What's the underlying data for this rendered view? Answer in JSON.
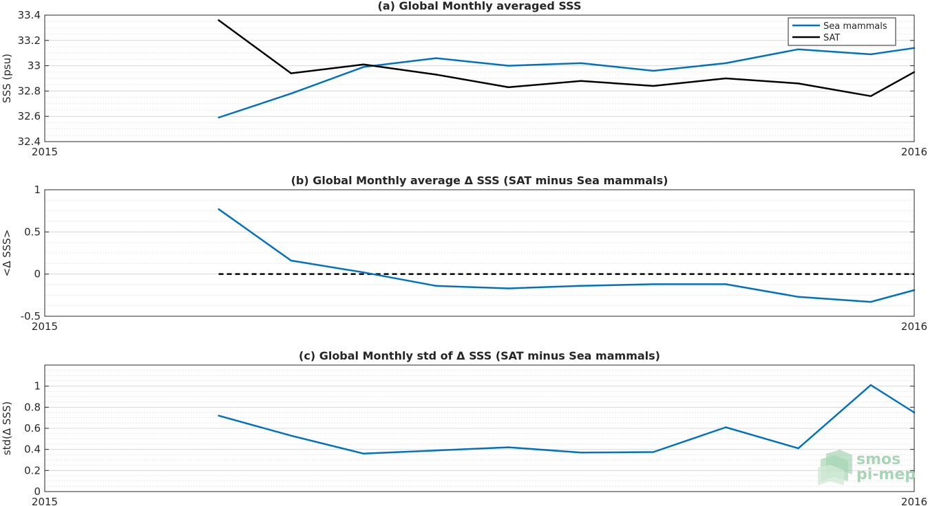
{
  "colors": {
    "sea_mammals": "#0072bd",
    "sat": "#000000",
    "zero_line": "#000000",
    "logo": "#a8d5b5"
  },
  "logo": {
    "line1": "smos",
    "line2": "pi-mep"
  },
  "chart_data": [
    {
      "type": "line",
      "title": "(a) Global Monthly averaged SSS",
      "ylabel": "SSS (psu)",
      "xlabel": "",
      "x_ticks": [
        "2015",
        "2016"
      ],
      "x_domain": [
        0,
        12
      ],
      "ylim": [
        32.4,
        33.4
      ],
      "y_ticks": [
        "32.4",
        "32.6",
        "32.8",
        "33",
        "33.2",
        "33.4"
      ],
      "y_tick_values": [
        32.4,
        32.6,
        32.8,
        33.0,
        33.2,
        33.4
      ],
      "grid": true,
      "legend": {
        "position": "top-right",
        "entries": [
          "Sea mammals",
          "SAT"
        ]
      },
      "series": [
        {
          "name": "Sea mammals",
          "x": [
            2.4,
            3.4,
            4.4,
            5.4,
            6.4,
            7.4,
            8.4,
            9.4,
            10.4,
            11.4,
            12
          ],
          "values": [
            32.59,
            32.78,
            32.99,
            33.06,
            33.0,
            33.02,
            32.96,
            33.02,
            33.13,
            33.09,
            33.14
          ]
        },
        {
          "name": "SAT",
          "x": [
            2.4,
            3.4,
            4.4,
            5.4,
            6.4,
            7.4,
            8.4,
            9.4,
            10.4,
            11.4,
            12
          ],
          "values": [
            33.36,
            32.94,
            33.01,
            32.93,
            32.83,
            32.88,
            32.84,
            32.9,
            32.86,
            32.76,
            32.95
          ]
        }
      ]
    },
    {
      "type": "line",
      "title": "(b) Global Monthly average Δ SSS (SAT minus Sea mammals)",
      "ylabel": "<Δ SSS>",
      "xlabel": "",
      "x_ticks": [
        "2015",
        "2016"
      ],
      "x_domain": [
        0,
        12
      ],
      "ylim": [
        -0.5,
        1
      ],
      "y_ticks": [
        "-0.5",
        "0",
        "0.5",
        "1"
      ],
      "y_tick_values": [
        -0.5,
        0,
        0.5,
        1
      ],
      "grid": true,
      "zero_line": {
        "y": 0,
        "x": [
          2.4,
          12
        ]
      },
      "series": [
        {
          "x": [
            2.4,
            3.4,
            4.4,
            5.4,
            6.4,
            7.4,
            8.4,
            9.4,
            10.4,
            11.4,
            12
          ],
          "values": [
            0.77,
            0.16,
            0.02,
            -0.14,
            -0.17,
            -0.14,
            -0.12,
            -0.12,
            -0.27,
            -0.33,
            -0.19
          ]
        }
      ]
    },
    {
      "type": "line",
      "title": "(c) Global Monthly std of Δ SSS (SAT minus Sea mammals)",
      "ylabel": "std(Δ SSS)",
      "xlabel": "",
      "x_ticks": [
        "2015",
        "2016"
      ],
      "x_domain": [
        0,
        12
      ],
      "ylim": [
        0,
        1.2
      ],
      "y_ticks": [
        "0",
        "0.2",
        "0.4",
        "0.6",
        "0.8",
        "1"
      ],
      "y_tick_values": [
        0,
        0.2,
        0.4,
        0.6,
        0.8,
        1.0
      ],
      "grid": true,
      "series": [
        {
          "x": [
            2.4,
            3.4,
            4.4,
            5.4,
            6.4,
            7.4,
            8.4,
            9.4,
            10.4,
            11.4,
            12
          ],
          "values": [
            0.72,
            0.53,
            0.36,
            0.39,
            0.42,
            0.37,
            0.375,
            0.61,
            0.41,
            1.01,
            0.75
          ]
        }
      ]
    }
  ]
}
